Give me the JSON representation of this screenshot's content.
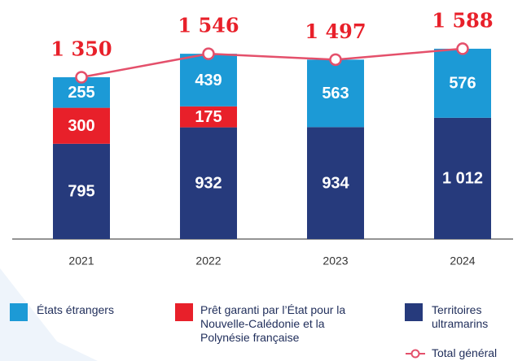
{
  "chart_data": {
    "type": "stacked-bar-line",
    "categories": [
      "2021",
      "2022",
      "2023",
      "2024"
    ],
    "series": [
      {
        "name": "Territoires ultramarins",
        "color": "#263a7c",
        "values": [
          795,
          932,
          934,
          1012
        ],
        "value_labels": [
          "795",
          "932",
          "934",
          "1 012"
        ]
      },
      {
        "name": "Prêt garanti par l’État pour la Nouvelle-Calédonie et la Polynésie française",
        "color": "#e8202a",
        "values": [
          300,
          175,
          null,
          null
        ]
      },
      {
        "name": "États étrangers",
        "color": "#1c9ad6",
        "values": [
          255,
          439,
          563,
          576
        ]
      }
    ],
    "total": {
      "name": "Total général",
      "color": "#e4506b",
      "values": [
        1350,
        1546,
        1497,
        1588
      ],
      "value_labels": [
        "1 350",
        "1 546",
        "1 497",
        "1 588"
      ]
    },
    "ylim": [
      0,
      1800
    ]
  }
}
